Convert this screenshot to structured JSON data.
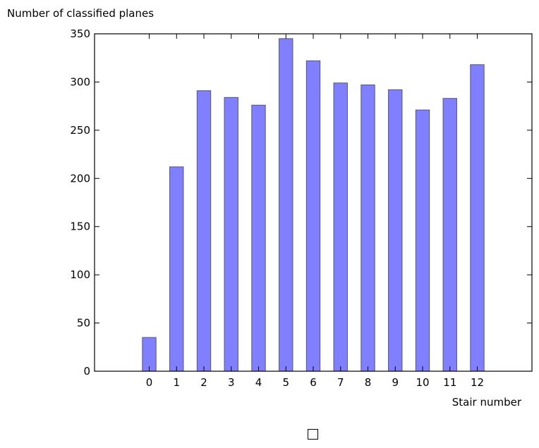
{
  "chart_data": {
    "type": "bar",
    "title": "",
    "xlabel": "Stair number",
    "ylabel": "Number of classified planes",
    "categories": [
      "0",
      "1",
      "2",
      "3",
      "4",
      "5",
      "6",
      "7",
      "8",
      "9",
      "10",
      "11",
      "12"
    ],
    "values": [
      35,
      212,
      291,
      284,
      276,
      345,
      322,
      299,
      297,
      292,
      271,
      283,
      318
    ],
    "xlim": [
      -2,
      14
    ],
    "ylim": [
      0,
      350
    ],
    "yticks": [
      0,
      50,
      100,
      150,
      200,
      250,
      300,
      350
    ],
    "bar_color": "#8080ff",
    "bar_edge_color": "#555577",
    "grid": false,
    "legend": "bottom-center"
  }
}
